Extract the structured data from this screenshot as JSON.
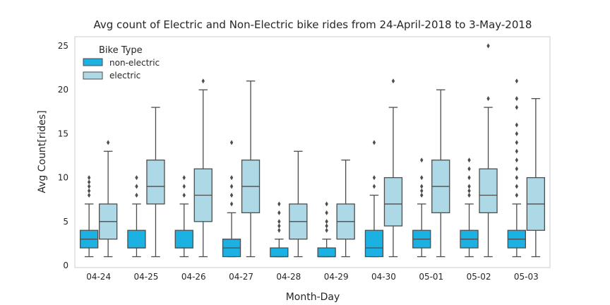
{
  "chart_data": {
    "type": "box",
    "title": "Avg count of Electric and Non-Electric bike rides from 24-April-2018 to 3-May-2018",
    "xlabel": "Month-Day",
    "ylabel": "Avg Count[rides]",
    "ylim": [
      0,
      26
    ],
    "yticks": [
      0,
      5,
      10,
      15,
      20,
      25
    ],
    "grid": false,
    "categories": [
      "04-24",
      "04-25",
      "04-26",
      "04-27",
      "04-28",
      "04-29",
      "04-30",
      "05-01",
      "05-02",
      "05-03"
    ],
    "legend": {
      "title": "Bike Type",
      "placement": "top-left"
    },
    "series": [
      {
        "name": "non-electric",
        "color": "#1cb1e3",
        "boxes": [
          {
            "min": 1,
            "q1": 2,
            "median": 3,
            "q3": 4,
            "max": 7,
            "outliers": [
              8,
              8.5,
              9,
              9.5,
              10
            ]
          },
          {
            "min": 1,
            "q1": 2,
            "median": 2,
            "q3": 4,
            "max": 7,
            "outliers": [
              8,
              9,
              10
            ]
          },
          {
            "min": 1,
            "q1": 2,
            "median": 2,
            "q3": 4,
            "max": 7,
            "outliers": [
              8,
              9,
              10
            ]
          },
          {
            "min": 1,
            "q1": 1,
            "median": 2,
            "q3": 3,
            "max": 6,
            "outliers": [
              7,
              8,
              9,
              10,
              14
            ]
          },
          {
            "min": 1,
            "q1": 1,
            "median": 1,
            "q3": 2,
            "max": 3,
            "outliers": [
              4,
              4.5,
              5,
              6,
              7
            ]
          },
          {
            "min": 1,
            "q1": 1,
            "median": 1,
            "q3": 2,
            "max": 3,
            "outliers": [
              4,
              4.5,
              5,
              6,
              7
            ]
          },
          {
            "min": 1,
            "q1": 1,
            "median": 2,
            "q3": 4,
            "max": 8,
            "outliers": [
              9,
              10,
              14
            ]
          },
          {
            "min": 1,
            "q1": 2,
            "median": 3,
            "q3": 4,
            "max": 7,
            "outliers": [
              8,
              8.5,
              9,
              10,
              12
            ]
          },
          {
            "min": 1,
            "q1": 2,
            "median": 3,
            "q3": 4,
            "max": 7,
            "outliers": [
              8,
              8.5,
              9,
              10,
              11,
              12
            ]
          },
          {
            "min": 1,
            "q1": 2,
            "median": 3,
            "q3": 4,
            "max": 7,
            "outliers": [
              8,
              9,
              10,
              11,
              12,
              13,
              14,
              15,
              16,
              18,
              19,
              21
            ]
          }
        ]
      },
      {
        "name": "electric",
        "color": "#add8e6",
        "boxes": [
          {
            "min": 1,
            "q1": 3,
            "median": 5,
            "q3": 7,
            "max": 13,
            "outliers": [
              14
            ]
          },
          {
            "min": 1,
            "q1": 7,
            "median": 9,
            "q3": 12,
            "max": 18,
            "outliers": []
          },
          {
            "min": 1,
            "q1": 5,
            "median": 8,
            "q3": 11,
            "max": 20,
            "outliers": [
              21
            ]
          },
          {
            "min": 1,
            "q1": 6,
            "median": 9,
            "q3": 12,
            "max": 21,
            "outliers": []
          },
          {
            "min": 1,
            "q1": 3,
            "median": 5,
            "q3": 7,
            "max": 13,
            "outliers": []
          },
          {
            "min": 1,
            "q1": 3,
            "median": 5,
            "q3": 7,
            "max": 12,
            "outliers": []
          },
          {
            "min": 1,
            "q1": 4.5,
            "median": 7,
            "q3": 10,
            "max": 18,
            "outliers": [
              21
            ]
          },
          {
            "min": 1,
            "q1": 6,
            "median": 9,
            "q3": 12,
            "max": 20,
            "outliers": []
          },
          {
            "min": 1,
            "q1": 6,
            "median": 8,
            "q3": 11,
            "max": 18,
            "outliers": [
              19,
              25
            ]
          },
          {
            "min": 1,
            "q1": 4,
            "median": 7,
            "q3": 10,
            "max": 19,
            "outliers": []
          }
        ]
      }
    ]
  }
}
